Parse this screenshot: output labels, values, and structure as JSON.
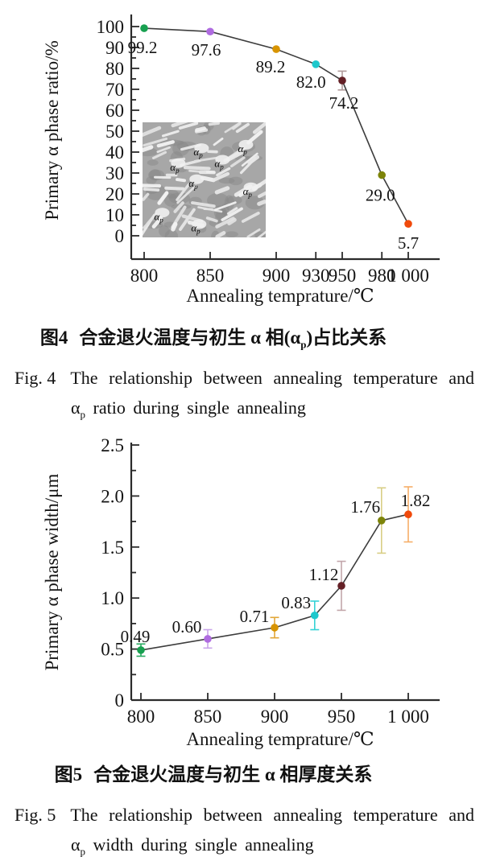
{
  "chart_data": [
    {
      "type": "line",
      "title": "",
      "x": [
        800,
        850,
        900,
        930,
        950,
        980,
        1000
      ],
      "values": [
        99.2,
        97.6,
        89.2,
        82.0,
        74.2,
        29.0,
        5.7
      ],
      "labels": [
        "99.2",
        "97.6",
        "89.2",
        "82.0",
        "74.2",
        "29.0",
        "5.7"
      ],
      "errors": [
        null,
        null,
        null,
        null,
        4.5,
        null,
        null
      ],
      "point_colors": [
        "#18a050",
        "#af6be0",
        "#d89400",
        "#1ec8cc",
        "#642026",
        "#7d8409",
        "#f04a0c"
      ],
      "error_colors": [
        null,
        null,
        null,
        null,
        "#b09a9a",
        null,
        null
      ],
      "line_color": "#3d3d3d",
      "xlabel": "Annealing temprature/℃",
      "ylabel": "Primary α phase ratio/%",
      "xlim": [
        785,
        1022
      ],
      "ylim": [
        0,
        100
      ],
      "xticks": [
        800,
        850,
        900,
        930,
        950,
        980,
        1000
      ],
      "xtick_labels": [
        "800",
        "850",
        "900",
        "930",
        "950",
        "980",
        "1 000"
      ],
      "yticks": [
        0,
        10,
        20,
        30,
        40,
        50,
        60,
        70,
        80,
        90,
        100
      ],
      "ytick_labels": [
        "0",
        "10",
        "20",
        "30",
        "40",
        "50",
        "60",
        "70",
        "80",
        "90",
        "100"
      ],
      "grid": false,
      "legend": null,
      "inset": {
        "type": "micrograph",
        "text": "α",
        "sub": "p",
        "positions": [
          [
            46,
            26
          ],
          [
            82,
            23
          ],
          [
            27,
            39
          ],
          [
            63,
            36
          ],
          [
            42,
            53
          ],
          [
            86,
            60
          ],
          [
            14,
            82
          ],
          [
            44,
            92
          ]
        ]
      }
    },
    {
      "type": "line",
      "title": "",
      "x": [
        800,
        850,
        900,
        930,
        950,
        980,
        1000
      ],
      "values": [
        0.49,
        0.6,
        0.71,
        0.83,
        1.12,
        1.76,
        1.82
      ],
      "labels": [
        "0.49",
        "0.60",
        "0.71",
        "0.83",
        "1.12",
        "1.76",
        "1.82"
      ],
      "errors": [
        0.06,
        0.09,
        0.1,
        0.14,
        0.24,
        0.32,
        0.27
      ],
      "point_colors": [
        "#18a050",
        "#af6be0",
        "#d89400",
        "#1ec8cc",
        "#642026",
        "#7d8409",
        "#f04a0c"
      ],
      "error_colors": [
        "#2aab62",
        "#c9a4ea",
        "#e2a637",
        "#35d2d6",
        "#c2a6aa",
        "#d8ce85",
        "#f6ae67"
      ],
      "line_color": "#3d3d3d",
      "xlabel": "Annealing temprature/℃",
      "ylabel": "Primary α phase width/μm",
      "xlim": [
        785,
        1022
      ],
      "ylim": [
        0,
        2.5
      ],
      "xticks": [
        800,
        850,
        900,
        950,
        1000
      ],
      "xtick_labels": [
        "800",
        "850",
        "900",
        "950",
        "1 000"
      ],
      "yticks": [
        0,
        0.5,
        1.0,
        1.5,
        2.0,
        2.5
      ],
      "ytick_labels": [
        "0",
        "0.5",
        "1.0",
        "1.5",
        "2.0",
        "2.5"
      ],
      "grid": false,
      "legend": null,
      "inset": null
    }
  ],
  "captions": [
    {
      "zh_prefix": "图4",
      "zh_pre": "合金退火温度与初生 α 相(α",
      "zh_sub": "p",
      "zh_post": ")占比关系",
      "en_label": "Fig. 4",
      "en_line1": "The relationship between annealing temperature and",
      "en_line2_pre": "α",
      "en_line2_sub": "p",
      "en_line2_post": " ratio during single annealing"
    },
    {
      "zh_prefix": "图5",
      "zh_pre": "合金退火温度与初生 α 相厚度关系",
      "zh_sub": "",
      "zh_post": "",
      "en_label": "Fig. 5",
      "en_line1": "The relationship between annealing temperature and",
      "en_line2_pre": "α",
      "en_line2_sub": "p",
      "en_line2_post": " width during single annealing"
    }
  ]
}
